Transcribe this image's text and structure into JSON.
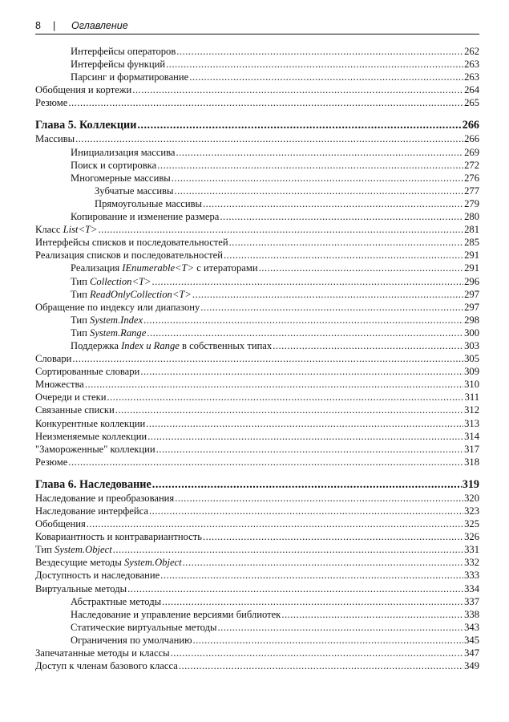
{
  "header": {
    "page_number": "8",
    "separator": "|",
    "title": "Оглавление"
  },
  "sections": [
    {
      "entries": [
        {
          "level": 1,
          "parts": [
            {
              "t": "Интерфейсы операторов"
            }
          ],
          "page": "262"
        },
        {
          "level": 1,
          "parts": [
            {
              "t": "Интерфейсы функций"
            }
          ],
          "page": "263"
        },
        {
          "level": 1,
          "parts": [
            {
              "t": "Парсинг и форматирование"
            }
          ],
          "page": "263"
        },
        {
          "level": 0,
          "parts": [
            {
              "t": "Обобщения и кортежи"
            }
          ],
          "page": "264"
        },
        {
          "level": 0,
          "parts": [
            {
              "t": "Резюме"
            }
          ],
          "page": "265"
        }
      ]
    },
    {
      "chapter": {
        "parts": [
          {
            "t": "Глава 5. Коллекции"
          }
        ],
        "page": "266"
      },
      "entries": [
        {
          "level": 0,
          "parts": [
            {
              "t": "Массивы"
            }
          ],
          "page": "266"
        },
        {
          "level": 1,
          "parts": [
            {
              "t": "Инициализация массива"
            }
          ],
          "page": "269"
        },
        {
          "level": 1,
          "parts": [
            {
              "t": "Поиск и сортировка"
            }
          ],
          "page": "272"
        },
        {
          "level": 1,
          "parts": [
            {
              "t": "Многомерные массивы"
            }
          ],
          "page": "276"
        },
        {
          "level": 2,
          "parts": [
            {
              "t": "Зубчатые массивы"
            }
          ],
          "page": "277"
        },
        {
          "level": 2,
          "parts": [
            {
              "t": "Прямоугольные массивы"
            }
          ],
          "page": "279"
        },
        {
          "level": 1,
          "parts": [
            {
              "t": "Копирование и изменение размера"
            }
          ],
          "page": "280"
        },
        {
          "level": 0,
          "parts": [
            {
              "t": "Класс "
            },
            {
              "t": "List<T>",
              "i": true
            }
          ],
          "page": "281"
        },
        {
          "level": 0,
          "parts": [
            {
              "t": "Интерфейсы списков и последовательностей"
            }
          ],
          "page": "285"
        },
        {
          "level": 0,
          "parts": [
            {
              "t": "Реализация списков и последовательностей"
            }
          ],
          "page": "291"
        },
        {
          "level": 1,
          "parts": [
            {
              "t": "Реализация "
            },
            {
              "t": "IEnumerable<T>",
              "i": true
            },
            {
              "t": " с итераторами"
            }
          ],
          "page": "291"
        },
        {
          "level": 1,
          "parts": [
            {
              "t": "Тип "
            },
            {
              "t": "Collection<T>",
              "i": true
            }
          ],
          "page": "296"
        },
        {
          "level": 1,
          "parts": [
            {
              "t": "Тип "
            },
            {
              "t": "ReadOnlyCollection<T>",
              "i": true
            }
          ],
          "page": "297"
        },
        {
          "level": 0,
          "parts": [
            {
              "t": "Обращение по индексу или диапазону"
            }
          ],
          "page": "297"
        },
        {
          "level": 1,
          "parts": [
            {
              "t": "Тип "
            },
            {
              "t": "System.Index",
              "i": true
            }
          ],
          "page": "298"
        },
        {
          "level": 1,
          "parts": [
            {
              "t": "Тип "
            },
            {
              "t": "System.Range",
              "i": true
            }
          ],
          "page": "300"
        },
        {
          "level": 1,
          "parts": [
            {
              "t": "Поддержка "
            },
            {
              "t": "Index и Range",
              "i": true
            },
            {
              "t": " в собственных типах"
            }
          ],
          "page": "303"
        },
        {
          "level": 0,
          "parts": [
            {
              "t": "Словари"
            }
          ],
          "page": "305"
        },
        {
          "level": 0,
          "parts": [
            {
              "t": "Сортированные словари"
            }
          ],
          "page": "309"
        },
        {
          "level": 0,
          "parts": [
            {
              "t": "Множества"
            }
          ],
          "page": "310"
        },
        {
          "level": 0,
          "parts": [
            {
              "t": "Очереди и стеки"
            }
          ],
          "page": "311"
        },
        {
          "level": 0,
          "parts": [
            {
              "t": "Связанные списки"
            }
          ],
          "page": "312"
        },
        {
          "level": 0,
          "parts": [
            {
              "t": "Конкурентные коллекции"
            }
          ],
          "page": "313"
        },
        {
          "level": 0,
          "parts": [
            {
              "t": "Неизменяемые коллекции"
            }
          ],
          "page": "314"
        },
        {
          "level": 0,
          "parts": [
            {
              "t": "\"Замороженные\" коллекции"
            }
          ],
          "page": "317"
        },
        {
          "level": 0,
          "parts": [
            {
              "t": "Резюме"
            }
          ],
          "page": "318"
        }
      ]
    },
    {
      "chapter": {
        "parts": [
          {
            "t": "Глава 6. Наследование"
          }
        ],
        "page": "319"
      },
      "entries": [
        {
          "level": 0,
          "parts": [
            {
              "t": "Наследование и преобразования"
            }
          ],
          "page": "320"
        },
        {
          "level": 0,
          "parts": [
            {
              "t": "Наследование интерфейса"
            }
          ],
          "page": "323"
        },
        {
          "level": 0,
          "parts": [
            {
              "t": "Обобщения"
            }
          ],
          "page": "325"
        },
        {
          "level": 0,
          "parts": [
            {
              "t": "Ковариантность и контравариантность"
            }
          ],
          "page": "326"
        },
        {
          "level": 0,
          "parts": [
            {
              "t": "Тип "
            },
            {
              "t": "System.Object",
              "i": true
            }
          ],
          "page": "331"
        },
        {
          "level": 0,
          "parts": [
            {
              "t": "Вездесущие методы "
            },
            {
              "t": "System.Object",
              "i": true
            }
          ],
          "page": "332"
        },
        {
          "level": 0,
          "parts": [
            {
              "t": "Доступность и наследование"
            }
          ],
          "page": "333"
        },
        {
          "level": 0,
          "parts": [
            {
              "t": "Виртуальные методы"
            }
          ],
          "page": "334"
        },
        {
          "level": 1,
          "parts": [
            {
              "t": "Абстрактные методы"
            }
          ],
          "page": "337"
        },
        {
          "level": 1,
          "parts": [
            {
              "t": "Наследование и управление версиями библиотек"
            }
          ],
          "page": "338"
        },
        {
          "level": 1,
          "parts": [
            {
              "t": "Статические виртуальные методы"
            }
          ],
          "page": "343"
        },
        {
          "level": 1,
          "parts": [
            {
              "t": "Ограничения по умолчанию"
            }
          ],
          "page": "345"
        },
        {
          "level": 0,
          "parts": [
            {
              "t": "Запечатанные методы и классы"
            }
          ],
          "page": "347"
        },
        {
          "level": 0,
          "parts": [
            {
              "t": "Доступ к членам базового класса"
            }
          ],
          "page": "349"
        }
      ]
    }
  ]
}
